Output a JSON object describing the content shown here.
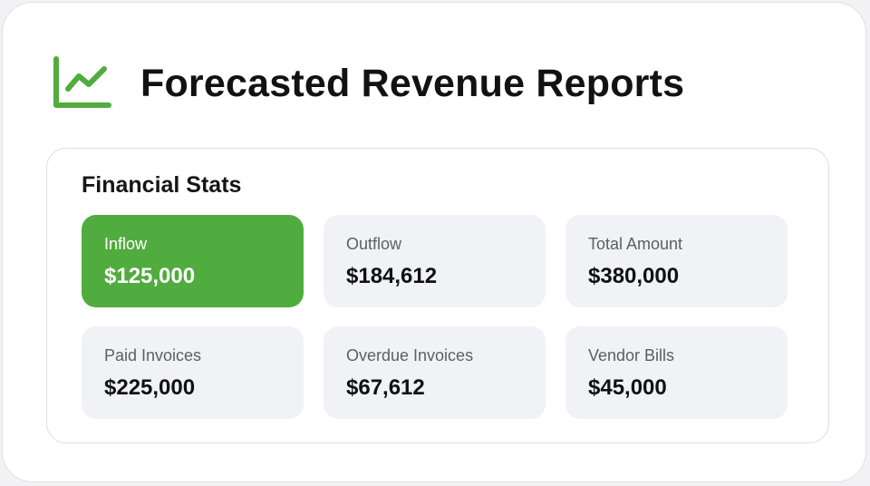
{
  "header": {
    "title": "Forecasted Revenue Reports",
    "icon": "line-chart-icon",
    "accent_color": "#50ac3e"
  },
  "stats_panel": {
    "title": "Financial Stats",
    "cards": [
      {
        "label": "Inflow",
        "value": "$125,000",
        "active": true
      },
      {
        "label": "Outflow",
        "value": "$184,612",
        "active": false
      },
      {
        "label": "Total Amount",
        "value": "$380,000",
        "active": false
      },
      {
        "label": "Paid Invoices",
        "value": "$225,000",
        "active": false
      },
      {
        "label": "Overdue Invoices",
        "value": "$67,612",
        "active": false
      },
      {
        "label": "Vendor Bills",
        "value": "$45,000",
        "active": false
      }
    ]
  }
}
